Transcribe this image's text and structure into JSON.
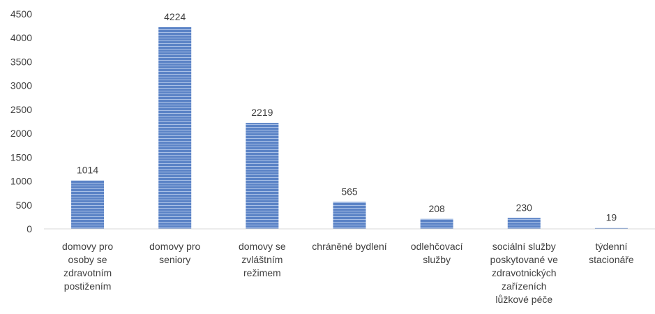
{
  "chart_data": {
    "type": "bar",
    "title": "",
    "xlabel": "",
    "ylabel": "",
    "ylim": [
      0,
      4500
    ],
    "yticks": [
      0,
      500,
      1000,
      1500,
      2000,
      2500,
      3000,
      3500,
      4000,
      4500
    ],
    "ytick_labels": [
      "0",
      "500",
      "1000",
      "1500",
      "2000",
      "2500",
      "3000",
      "3500",
      "4000",
      "4500"
    ],
    "grid": false,
    "legend": "none",
    "bar_color": "#5b83c6",
    "bar_stripe_color": "#a9c0e6",
    "categories": [
      [
        "domovy pro",
        "osoby se",
        "zdravotním",
        "postižením"
      ],
      [
        "domovy pro",
        "seniory"
      ],
      [
        "domovy se",
        "zvláštním",
        "režimem"
      ],
      [
        "chráněné bydlení"
      ],
      [
        "odlehčovací",
        "služby"
      ],
      [
        "sociální služby",
        "poskytované ve",
        "zdravotnických",
        "zařízeních",
        "lůžkové péče"
      ],
      [
        "týdenní",
        "stacionáře"
      ]
    ],
    "values": [
      1014,
      4224,
      2219,
      565,
      208,
      230,
      19
    ],
    "value_labels": [
      "1014",
      "4224",
      "2219",
      "565",
      "208",
      "230",
      "19"
    ]
  }
}
